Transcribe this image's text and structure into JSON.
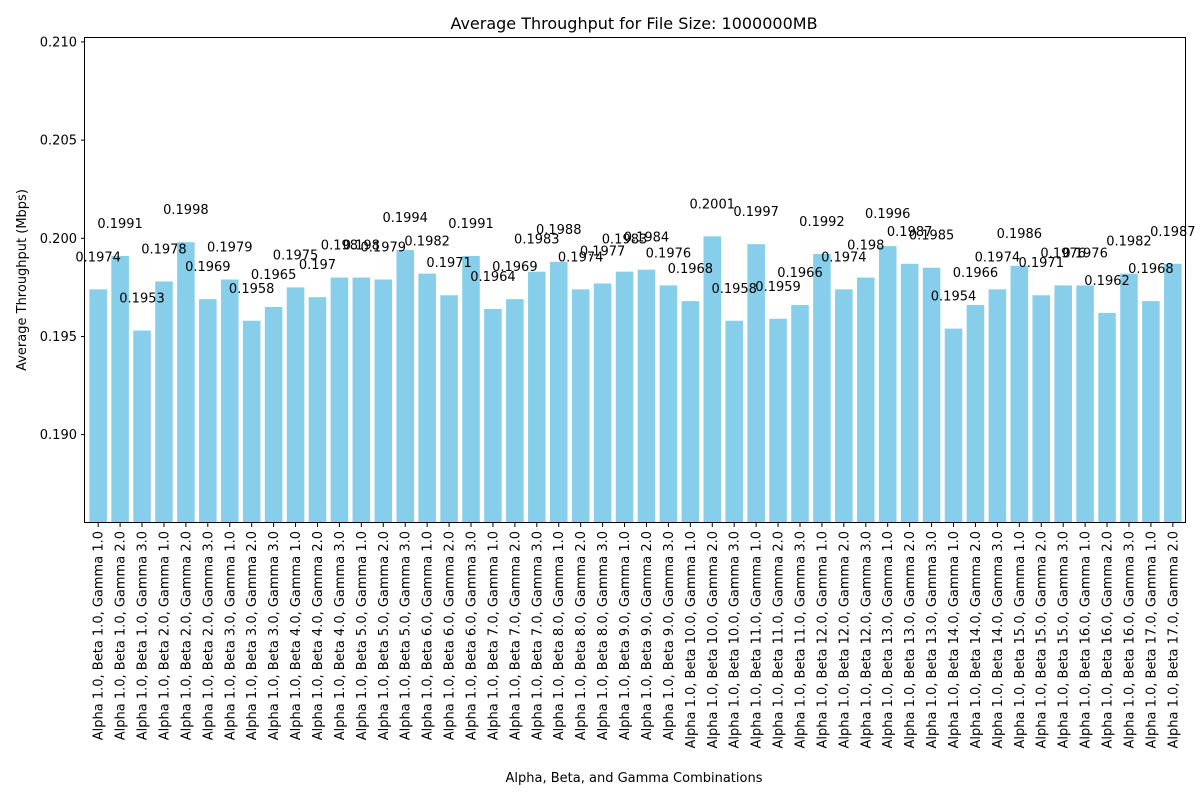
{
  "chart_data": {
    "type": "bar",
    "title": "Average Throughput for File Size: 1000000MB",
    "xlabel": "Alpha, Beta, and Gamma Combinations",
    "ylabel": "Average Throughput (Mbps)",
    "ylim": [
      0.1855,
      0.2102
    ],
    "yticks": [
      "0.190",
      "0.195",
      "0.200",
      "0.205",
      "0.210"
    ],
    "ytick_values": [
      0.19,
      0.195,
      0.2,
      0.205,
      0.21
    ],
    "bar_color": "#87ceeb",
    "grid": false,
    "categories": [
      "Alpha 1.0, Beta 1.0, Gamma 1.0",
      "Alpha 1.0, Beta 1.0, Gamma 2.0",
      "Alpha 1.0, Beta 1.0, Gamma 3.0",
      "Alpha 1.0, Beta 2.0, Gamma 1.0",
      "Alpha 1.0, Beta 2.0, Gamma 2.0",
      "Alpha 1.0, Beta 2.0, Gamma 3.0",
      "Alpha 1.0, Beta 3.0, Gamma 1.0",
      "Alpha 1.0, Beta 3.0, Gamma 2.0",
      "Alpha 1.0, Beta 3.0, Gamma 3.0",
      "Alpha 1.0, Beta 4.0, Gamma 1.0",
      "Alpha 1.0, Beta 4.0, Gamma 2.0",
      "Alpha 1.0, Beta 4.0, Gamma 3.0",
      "Alpha 1.0, Beta 5.0, Gamma 1.0",
      "Alpha 1.0, Beta 5.0, Gamma 2.0",
      "Alpha 1.0, Beta 5.0, Gamma 3.0",
      "Alpha 1.0, Beta 6.0, Gamma 1.0",
      "Alpha 1.0, Beta 6.0, Gamma 2.0",
      "Alpha 1.0, Beta 6.0, Gamma 3.0",
      "Alpha 1.0, Beta 7.0, Gamma 1.0",
      "Alpha 1.0, Beta 7.0, Gamma 2.0",
      "Alpha 1.0, Beta 7.0, Gamma 3.0",
      "Alpha 1.0, Beta 8.0, Gamma 1.0",
      "Alpha 1.0, Beta 8.0, Gamma 2.0",
      "Alpha 1.0, Beta 8.0, Gamma 3.0",
      "Alpha 1.0, Beta 9.0, Gamma 1.0",
      "Alpha 1.0, Beta 9.0, Gamma 2.0",
      "Alpha 1.0, Beta 9.0, Gamma 3.0",
      "Alpha 1.0, Beta 10.0, Gamma 1.0",
      "Alpha 1.0, Beta 10.0, Gamma 2.0",
      "Alpha 1.0, Beta 10.0, Gamma 3.0",
      "Alpha 1.0, Beta 11.0, Gamma 1.0",
      "Alpha 1.0, Beta 11.0, Gamma 2.0",
      "Alpha 1.0, Beta 11.0, Gamma 3.0",
      "Alpha 1.0, Beta 12.0, Gamma 1.0",
      "Alpha 1.0, Beta 12.0, Gamma 2.0",
      "Alpha 1.0, Beta 12.0, Gamma 3.0",
      "Alpha 1.0, Beta 13.0, Gamma 1.0",
      "Alpha 1.0, Beta 13.0, Gamma 2.0",
      "Alpha 1.0, Beta 13.0, Gamma 3.0",
      "Alpha 1.0, Beta 14.0, Gamma 1.0",
      "Alpha 1.0, Beta 14.0, Gamma 2.0",
      "Alpha 1.0, Beta 14.0, Gamma 3.0",
      "Alpha 1.0, Beta 15.0, Gamma 1.0",
      "Alpha 1.0, Beta 15.0, Gamma 2.0",
      "Alpha 1.0, Beta 15.0, Gamma 3.0",
      "Alpha 1.0, Beta 16.0, Gamma 1.0",
      "Alpha 1.0, Beta 16.0, Gamma 2.0",
      "Alpha 1.0, Beta 16.0, Gamma 3.0",
      "Alpha 1.0, Beta 17.0, Gamma 1.0",
      "Alpha 1.0, Beta 17.0, Gamma 2.0"
    ],
    "values": [
      0.1974,
      0.1991,
      0.1953,
      0.1978,
      0.1998,
      0.1969,
      0.1979,
      0.1958,
      0.1965,
      0.1975,
      0.197,
      0.198,
      0.198,
      0.1979,
      0.1994,
      0.1982,
      0.1971,
      0.1991,
      0.1964,
      0.1969,
      0.1983,
      0.1988,
      0.1974,
      0.1977,
      0.1983,
      0.1984,
      0.1976,
      0.1968,
      0.2001,
      0.1958,
      0.1997,
      0.1959,
      0.1966,
      0.1992,
      0.1974,
      0.198,
      0.1996,
      0.1987,
      0.1985,
      0.1954,
      0.1966,
      0.1974,
      0.1986,
      0.1971,
      0.1976,
      0.1976,
      0.1962,
      0.1982,
      0.1968,
      0.1987
    ],
    "value_labels": [
      "0.1974",
      "0.1991",
      "0.1953",
      "0.1978",
      "0.1998",
      "0.1969",
      "0.1979",
      "0.1958",
      "0.1965",
      "0.1975",
      "0.197",
      "0.198",
      "0.198",
      "0.1979",
      "0.1994",
      "0.1982",
      "0.1971",
      "0.1991",
      "0.1964",
      "0.1969",
      "0.1983",
      "0.1988",
      "0.1974",
      "0.1977",
      "0.1983",
      "0.1984",
      "0.1976",
      "0.1968",
      "0.2001",
      "0.1958",
      "0.1997",
      "0.1959",
      "0.1966",
      "0.1992",
      "0.1974",
      "0.198",
      "0.1996",
      "0.1987",
      "0.1985",
      "0.1954",
      "0.1966",
      "0.1974",
      "0.1986",
      "0.1971",
      "0.1976",
      "0.1976",
      "0.1962",
      "0.1982",
      "0.1968",
      "0.1987"
    ]
  }
}
